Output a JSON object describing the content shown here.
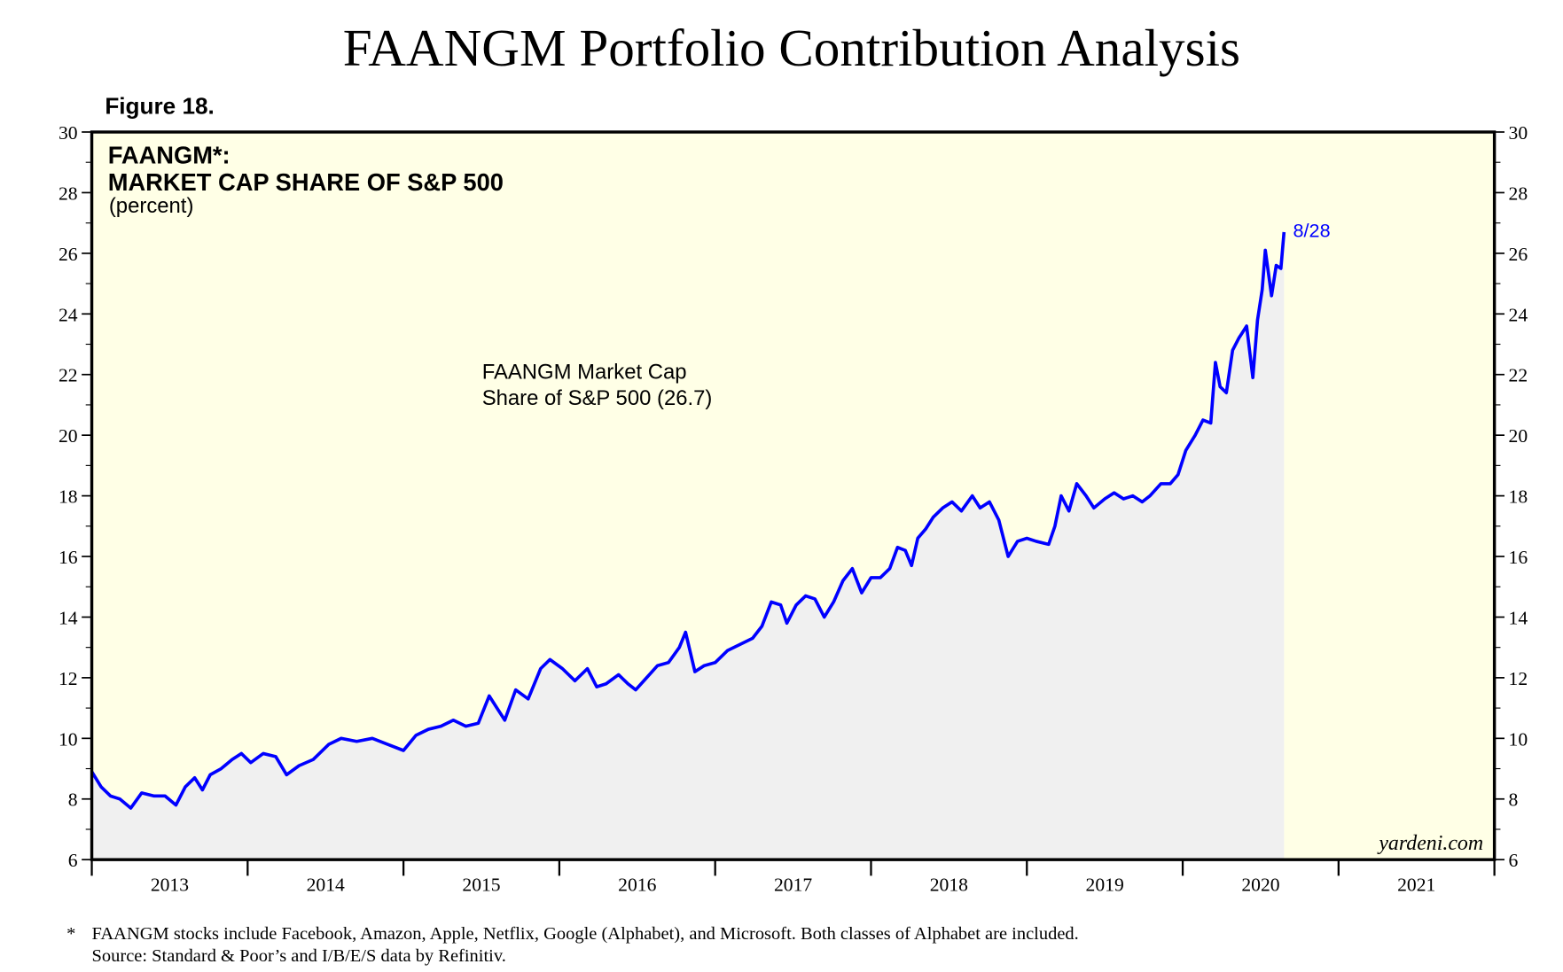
{
  "chart_data": {
    "type": "area-line",
    "title": "FAANGM Portfolio Contribution Analysis",
    "figure_label": "Figure 18.",
    "heading_lines": [
      "FAANGM*:",
      "MARKET CAP SHARE OF S&P 500"
    ],
    "unit_label": "(percent)",
    "series_label_lines": [
      "FAANGM Market Cap",
      "Share of S&P 500 (26.7)"
    ],
    "end_label": "8/28",
    "watermark": "yardeni.com",
    "footnote_mark": "*",
    "footnote_lines": [
      "FAANGM stocks include Facebook, Amazon, Apple, Netflix, Google (Alphabet), and Microsoft. Both classes of Alphabet are included.",
      "Source: Standard & Poor’s and I/B/E/S data by Refinitiv."
    ],
    "xlim": [
      2013,
      2022
    ],
    "xticks": [
      2013,
      2014,
      2015,
      2016,
      2017,
      2018,
      2019,
      2020,
      2021,
      2022
    ],
    "year_labels": [
      "2013",
      "2014",
      "2015",
      "2016",
      "2017",
      "2018",
      "2019",
      "2020",
      "2021"
    ],
    "ylim": [
      6,
      30
    ],
    "yticks": [
      6,
      8,
      10,
      12,
      14,
      16,
      18,
      20,
      22,
      24,
      26,
      28,
      30
    ],
    "y2lim": [
      6,
      30
    ],
    "y2ticks": [
      6,
      8,
      10,
      12,
      14,
      16,
      18,
      20,
      22,
      24,
      26,
      28,
      30
    ],
    "line_color": "#0000ff",
    "area_color": "#f0f0f0",
    "plot_background": "#ffffe6",
    "x": [
      2013.0,
      2013.06,
      2013.12,
      2013.18,
      2013.25,
      2013.32,
      2013.4,
      2013.47,
      2013.54,
      2013.6,
      2013.66,
      2013.71,
      2013.76,
      2013.83,
      2013.9,
      2013.96,
      2014.02,
      2014.1,
      2014.18,
      2014.25,
      2014.33,
      2014.42,
      2014.52,
      2014.6,
      2014.7,
      2014.8,
      2014.9,
      2015.0,
      2015.08,
      2015.16,
      2015.24,
      2015.32,
      2015.4,
      2015.48,
      2015.55,
      2015.6,
      2015.65,
      2015.72,
      2015.8,
      2015.88,
      2015.94,
      2016.02,
      2016.1,
      2016.18,
      2016.24,
      2016.3,
      2016.38,
      2016.44,
      2016.49,
      2016.56,
      2016.63,
      2016.7,
      2016.77,
      2016.81,
      2016.87,
      2016.93,
      2017.0,
      2017.08,
      2017.16,
      2017.24,
      2017.3,
      2017.36,
      2017.42,
      2017.46,
      2017.52,
      2017.58,
      2017.64,
      2017.7,
      2017.76,
      2017.82,
      2017.88,
      2017.94,
      2018.0,
      2018.06,
      2018.12,
      2018.17,
      2018.22,
      2018.26,
      2018.3,
      2018.35,
      2018.4,
      2018.46,
      2018.52,
      2018.58,
      2018.65,
      2018.7,
      2018.76,
      2018.82,
      2018.88,
      2018.94,
      2019.0,
      2019.06,
      2019.14,
      2019.18,
      2019.22,
      2019.27,
      2019.32,
      2019.38,
      2019.43,
      2019.5,
      2019.56,
      2019.62,
      2019.68,
      2019.74,
      2019.79,
      2019.86,
      2019.92,
      2019.97,
      2020.02,
      2020.08,
      2020.13,
      2020.18,
      2020.21,
      2020.24,
      2020.28,
      2020.32,
      2020.36,
      2020.41,
      2020.45,
      2020.48,
      2020.51,
      2020.53,
      2020.57,
      2020.6,
      2020.63,
      2020.65
    ],
    "values": [
      8.9,
      8.4,
      8.1,
      8.0,
      7.7,
      8.2,
      8.1,
      8.1,
      7.8,
      8.4,
      8.7,
      8.3,
      8.8,
      9.0,
      9.3,
      9.5,
      9.2,
      9.5,
      9.4,
      8.8,
      9.1,
      9.3,
      9.8,
      10.0,
      9.9,
      10.0,
      9.8,
      9.6,
      10.1,
      10.3,
      10.4,
      10.6,
      10.4,
      10.5,
      11.4,
      11.0,
      10.6,
      11.6,
      11.3,
      12.3,
      12.6,
      12.3,
      11.9,
      12.3,
      11.7,
      11.8,
      12.1,
      11.8,
      11.6,
      12.0,
      12.4,
      12.5,
      13.0,
      13.5,
      12.2,
      12.4,
      12.5,
      12.9,
      13.1,
      13.3,
      13.7,
      14.5,
      14.4,
      13.8,
      14.4,
      14.7,
      14.6,
      14.0,
      14.5,
      15.2,
      15.6,
      14.8,
      15.3,
      15.3,
      15.6,
      16.3,
      16.2,
      15.7,
      16.6,
      16.9,
      17.3,
      17.6,
      17.8,
      17.5,
      18.0,
      17.6,
      17.8,
      17.2,
      16.0,
      16.5,
      16.6,
      16.5,
      16.4,
      17.0,
      18.0,
      17.5,
      18.4,
      18.0,
      17.6,
      17.9,
      18.1,
      17.9,
      18.0,
      17.8,
      18.0,
      18.4,
      18.4,
      18.7,
      19.5,
      20.0,
      20.5,
      20.4,
      22.4,
      21.6,
      21.4,
      22.8,
      23.2,
      23.6,
      21.9,
      23.8,
      24.8,
      26.1,
      24.6,
      25.6,
      25.5,
      26.7
    ]
  }
}
